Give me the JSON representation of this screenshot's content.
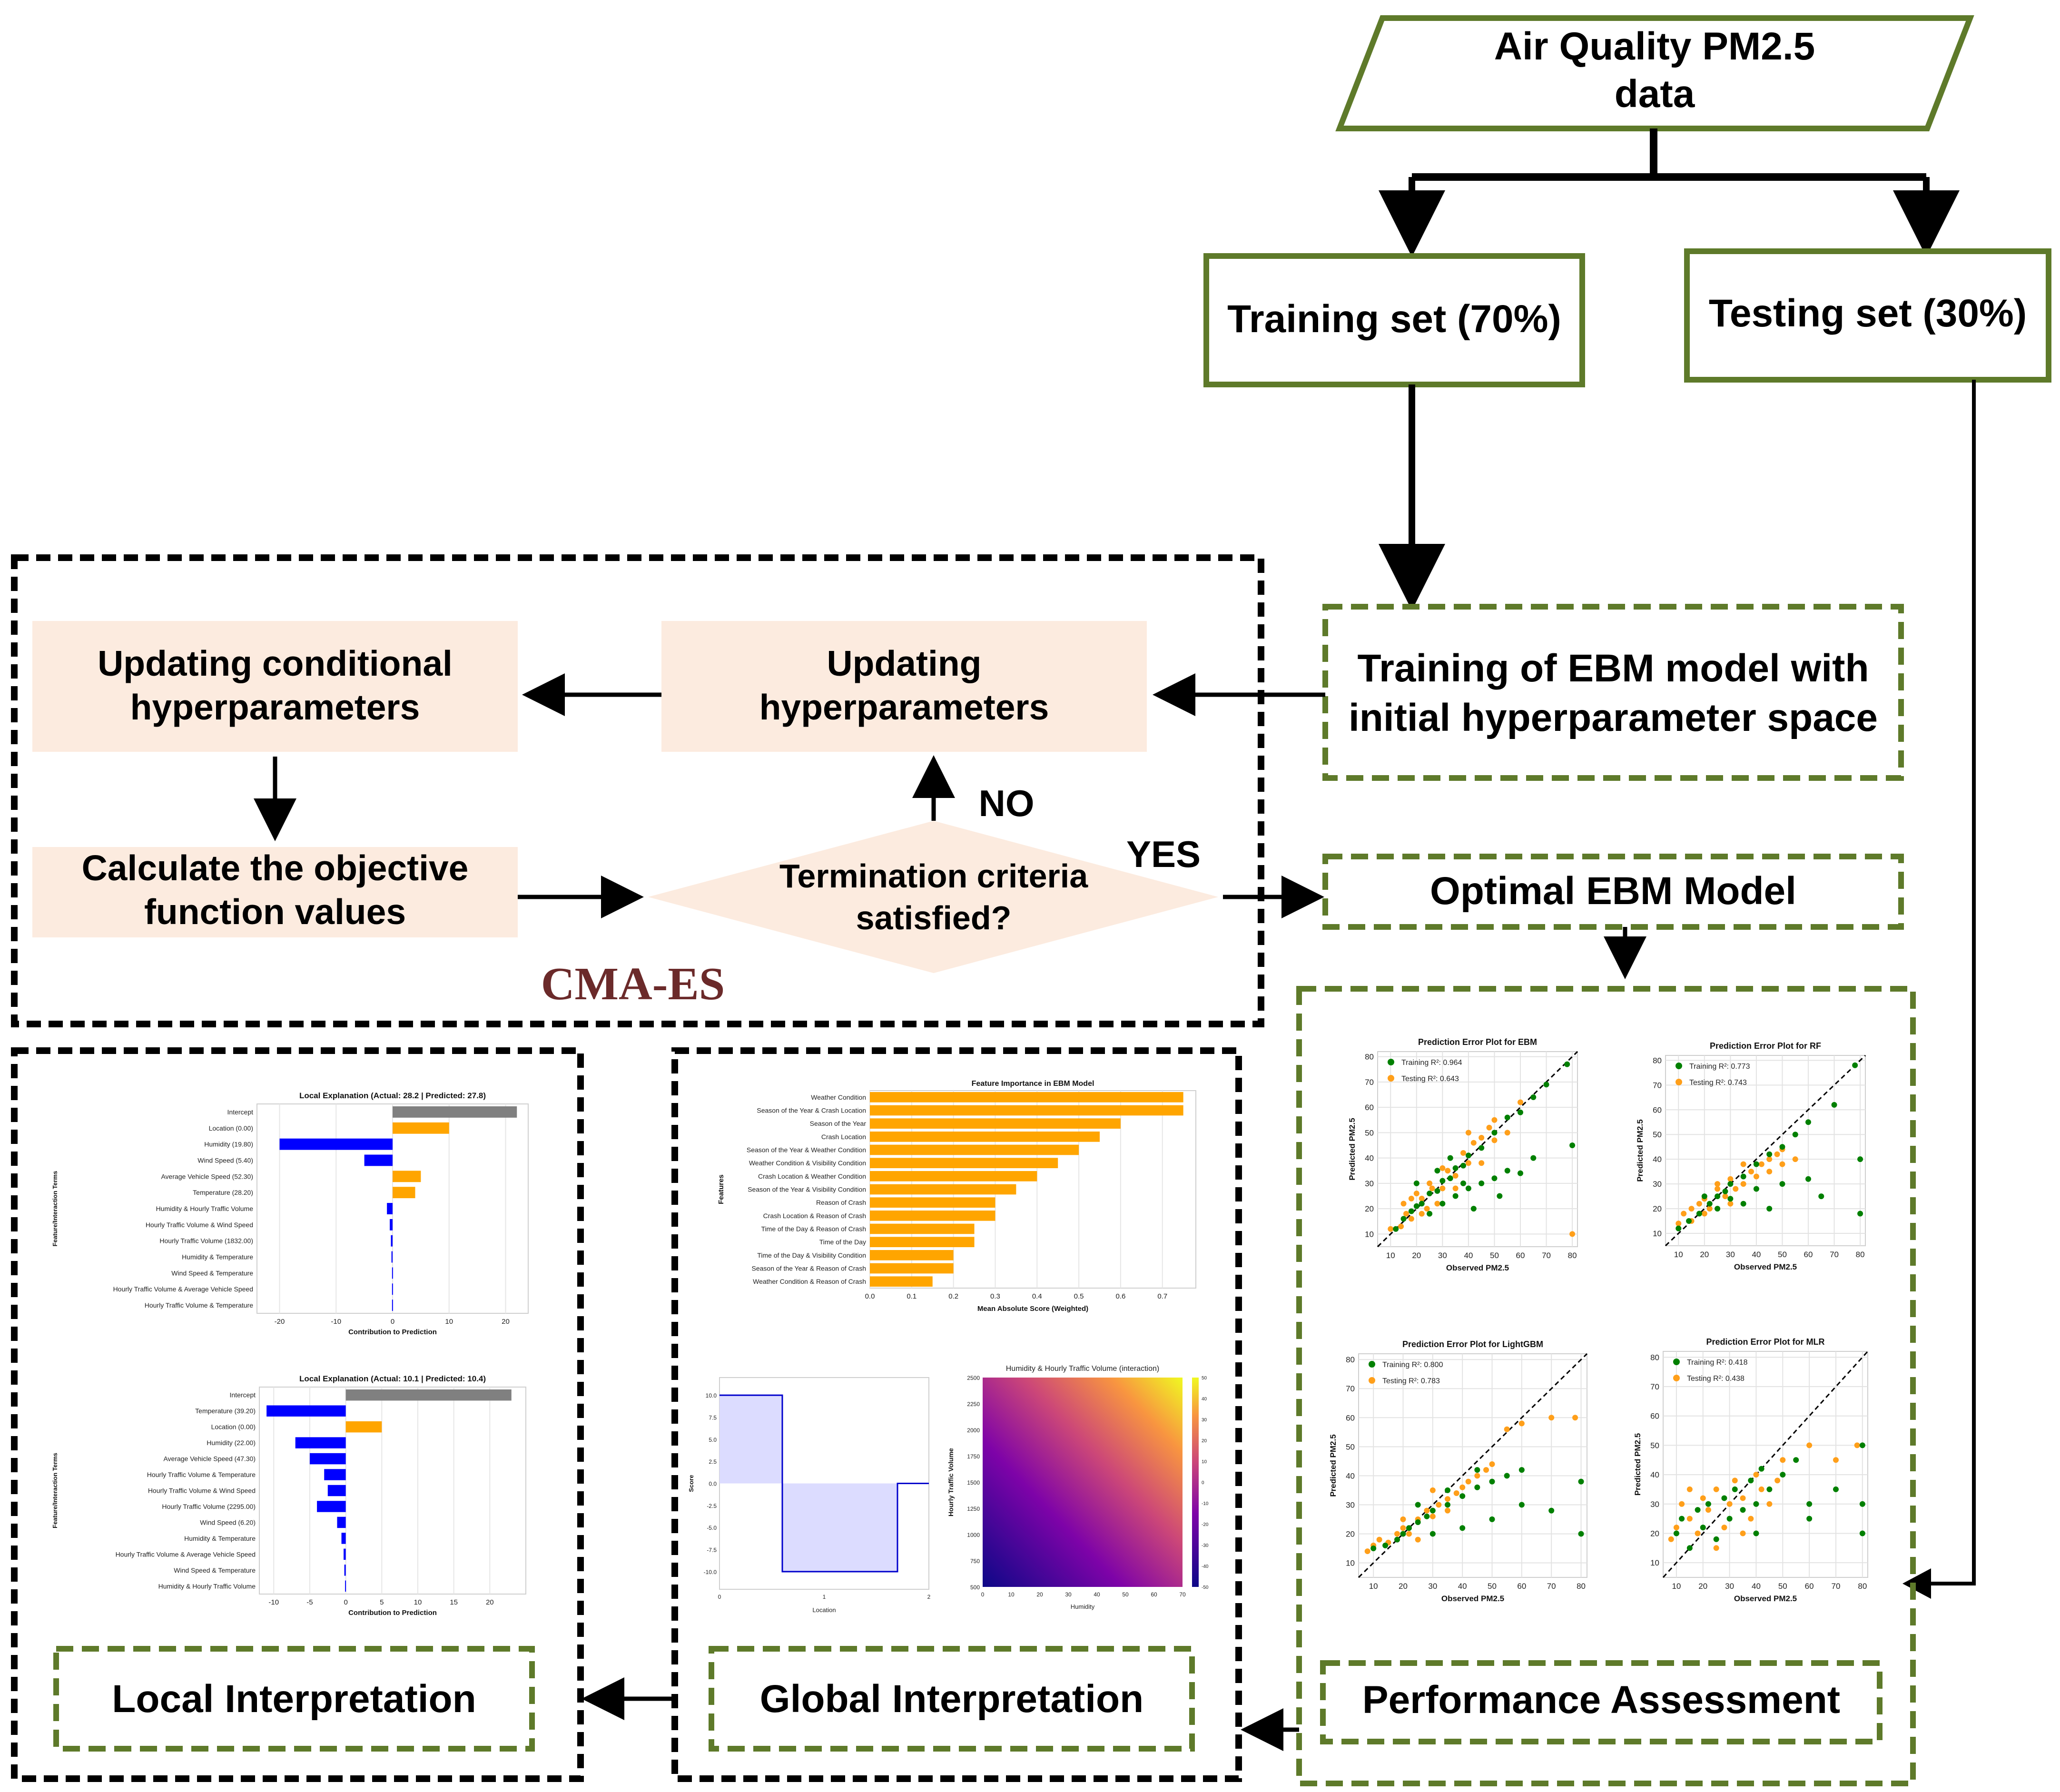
{
  "flow": {
    "input_data_l1": "Air Quality PM2.5",
    "input_data_l2": "data",
    "training_set": "Training set (70%)",
    "testing_set": "Testing set (30%)",
    "training_ebm_l1": "Training of EBM model with",
    "training_ebm_l2": "initial hyperparameter space",
    "updating_cond_l1": "Updating conditional",
    "updating_cond_l2": "hyperparameters",
    "updating_hyp_l1": "Updating",
    "updating_hyp_l2": "hyperparameters",
    "calc_obj_l1": "Calculate the objective",
    "calc_obj_l2": "function values",
    "termination_l1": "Termination criteria",
    "termination_l2": "satisfied?",
    "no_label": "NO",
    "yes_label": "YES",
    "cmaes_label": "CMA-ES",
    "optimal_model": "Optimal EBM Model",
    "performance": "Performance Assessment",
    "global_interp": "Global Interpretation",
    "local_interp": "Local Interpretation"
  },
  "colors": {
    "green": "#5e7a2a",
    "peach": "#fcebdf",
    "maroon": "#6b2a2a",
    "orange": "#ffa500",
    "blue": "#0000ff",
    "gray": "#808080",
    "train": "#008000",
    "test": "#ff9f1a"
  },
  "chart_data": [
    {
      "type": "scatter",
      "title": "Prediction Error Plot for EBM",
      "xlabel": "Observed PM2.5",
      "ylabel": "Predicted PM2.5",
      "xlim": [
        5,
        82
      ],
      "ylim": [
        5,
        82
      ],
      "xticks": [
        10,
        20,
        30,
        40,
        50,
        60,
        70,
        80
      ],
      "yticks": [
        10,
        20,
        30,
        40,
        50,
        60,
        70,
        80
      ],
      "legend_train": "Training R²: 0.964",
      "legend_test": "Testing R²: 0.643",
      "train_r2": 0.964,
      "test_r2": 0.643,
      "train_points": [
        [
          12,
          12
        ],
        [
          15,
          16
        ],
        [
          18,
          19
        ],
        [
          20,
          21
        ],
        [
          22,
          22
        ],
        [
          25,
          26
        ],
        [
          28,
          27
        ],
        [
          30,
          31
        ],
        [
          33,
          32
        ],
        [
          35,
          36
        ],
        [
          38,
          37
        ],
        [
          40,
          41
        ],
        [
          45,
          44
        ],
        [
          50,
          50
        ],
        [
          55,
          56
        ],
        [
          60,
          58
        ],
        [
          65,
          64
        ],
        [
          70,
          69
        ],
        [
          78,
          77
        ],
        [
          25,
          18
        ],
        [
          30,
          22
        ],
        [
          35,
          25
        ],
        [
          40,
          28
        ],
        [
          45,
          30
        ],
        [
          50,
          32
        ],
        [
          55,
          35
        ],
        [
          60,
          34
        ],
        [
          80,
          45
        ],
        [
          42,
          20
        ],
        [
          38,
          30
        ],
        [
          52,
          25
        ],
        [
          65,
          40
        ],
        [
          28,
          35
        ],
        [
          33,
          40
        ],
        [
          20,
          30
        ]
      ],
      "test_points": [
        [
          10,
          12
        ],
        [
          14,
          13
        ],
        [
          16,
          18
        ],
        [
          18,
          16
        ],
        [
          22,
          24
        ],
        [
          24,
          20
        ],
        [
          26,
          28
        ],
        [
          30,
          28
        ],
        [
          32,
          35
        ],
        [
          35,
          33
        ],
        [
          38,
          42
        ],
        [
          40,
          38
        ],
        [
          42,
          46
        ],
        [
          45,
          48
        ],
        [
          48,
          52
        ],
        [
          50,
          47
        ],
        [
          55,
          50
        ],
        [
          60,
          62
        ],
        [
          25,
          30
        ],
        [
          30,
          36
        ],
        [
          20,
          26
        ],
        [
          35,
          28
        ],
        [
          28,
          22
        ],
        [
          45,
          38
        ],
        [
          80,
          10
        ],
        [
          15,
          22
        ],
        [
          40,
          50
        ],
        [
          50,
          55
        ],
        [
          22,
          18
        ],
        [
          18,
          24
        ]
      ]
    },
    {
      "type": "scatter",
      "title": "Prediction Error Plot for RF",
      "xlabel": "Observed PM2.5",
      "ylabel": "Predicted PM2.5",
      "xlim": [
        5,
        82
      ],
      "ylim": [
        5,
        82
      ],
      "xticks": [
        10,
        20,
        30,
        40,
        50,
        60,
        70,
        80
      ],
      "yticks": [
        10,
        20,
        30,
        40,
        50,
        60,
        70,
        80
      ],
      "legend_train": "Training R²: 0.773",
      "legend_test": "Testing R²: 0.743",
      "train_r2": 0.773,
      "test_r2": 0.743,
      "train_points": [
        [
          10,
          12
        ],
        [
          14,
          15
        ],
        [
          18,
          18
        ],
        [
          22,
          22
        ],
        [
          25,
          25
        ],
        [
          28,
          27
        ],
        [
          30,
          30
        ],
        [
          35,
          33
        ],
        [
          40,
          38
        ],
        [
          45,
          42
        ],
        [
          50,
          45
        ],
        [
          55,
          50
        ],
        [
          60,
          55
        ],
        [
          70,
          62
        ],
        [
          78,
          78
        ],
        [
          25,
          20
        ],
        [
          30,
          24
        ],
        [
          40,
          28
        ],
        [
          50,
          30
        ],
        [
          60,
          32
        ],
        [
          80,
          40
        ],
        [
          80,
          18
        ],
        [
          45,
          20
        ],
        [
          35,
          22
        ],
        [
          20,
          25
        ],
        [
          65,
          25
        ]
      ],
      "test_points": [
        [
          10,
          14
        ],
        [
          12,
          18
        ],
        [
          15,
          20
        ],
        [
          18,
          22
        ],
        [
          20,
          24
        ],
        [
          22,
          20
        ],
        [
          25,
          28
        ],
        [
          28,
          25
        ],
        [
          30,
          32
        ],
        [
          32,
          28
        ],
        [
          35,
          30
        ],
        [
          38,
          35
        ],
        [
          40,
          33
        ],
        [
          42,
          38
        ],
        [
          45,
          40
        ],
        [
          48,
          42
        ],
        [
          50,
          44
        ],
        [
          30,
          22
        ],
        [
          25,
          30
        ],
        [
          20,
          18
        ],
        [
          15,
          15
        ],
        [
          45,
          35
        ],
        [
          55,
          40
        ],
        [
          35,
          38
        ],
        [
          50,
          38
        ]
      ]
    },
    {
      "type": "scatter",
      "title": "Prediction Error Plot for LightGBM",
      "xlabel": "Observed PM2.5",
      "ylabel": "Predicted PM2.5",
      "xlim": [
        5,
        82
      ],
      "ylim": [
        5,
        82
      ],
      "xticks": [
        10,
        20,
        30,
        40,
        50,
        60,
        70,
        80
      ],
      "yticks": [
        10,
        20,
        30,
        40,
        50,
        60,
        70,
        80
      ],
      "legend_train": "Training R²: 0.800",
      "legend_test": "Testing R²: 0.783",
      "train_r2": 0.8,
      "test_r2": 0.783,
      "train_points": [
        [
          10,
          15
        ],
        [
          14,
          16
        ],
        [
          18,
          18
        ],
        [
          20,
          20
        ],
        [
          22,
          22
        ],
        [
          25,
          24
        ],
        [
          28,
          26
        ],
        [
          30,
          28
        ],
        [
          35,
          30
        ],
        [
          40,
          33
        ],
        [
          45,
          36
        ],
        [
          50,
          38
        ],
        [
          55,
          40
        ],
        [
          60,
          42
        ],
        [
          80,
          38
        ],
        [
          80,
          20
        ],
        [
          70,
          28
        ],
        [
          60,
          30
        ],
        [
          40,
          22
        ],
        [
          50,
          25
        ],
        [
          30,
          20
        ],
        [
          25,
          30
        ],
        [
          35,
          35
        ],
        [
          45,
          42
        ]
      ],
      "test_points": [
        [
          8,
          14
        ],
        [
          10,
          16
        ],
        [
          12,
          18
        ],
        [
          15,
          17
        ],
        [
          18,
          20
        ],
        [
          20,
          22
        ],
        [
          22,
          20
        ],
        [
          25,
          25
        ],
        [
          28,
          28
        ],
        [
          30,
          26
        ],
        [
          32,
          30
        ],
        [
          35,
          32
        ],
        [
          38,
          34
        ],
        [
          40,
          36
        ],
        [
          42,
          38
        ],
        [
          45,
          40
        ],
        [
          48,
          42
        ],
        [
          50,
          44
        ],
        [
          55,
          56
        ],
        [
          60,
          58
        ],
        [
          70,
          60
        ],
        [
          78,
          60
        ],
        [
          30,
          35
        ],
        [
          25,
          18
        ],
        [
          20,
          25
        ],
        [
          35,
          28
        ]
      ]
    },
    {
      "type": "scatter",
      "title": "Prediction Error Plot for MLR",
      "xlabel": "Observed PM2.5",
      "ylabel": "Predicted PM2.5",
      "xlim": [
        5,
        82
      ],
      "ylim": [
        5,
        82
      ],
      "xticks": [
        10,
        20,
        30,
        40,
        50,
        60,
        70,
        80
      ],
      "yticks": [
        10,
        20,
        30,
        40,
        50,
        60,
        70,
        80
      ],
      "legend_train": "Training R²: 0.418",
      "legend_test": "Testing R²: 0.438",
      "train_r2": 0.418,
      "test_r2": 0.438,
      "train_points": [
        [
          10,
          20
        ],
        [
          12,
          25
        ],
        [
          15,
          15
        ],
        [
          18,
          28
        ],
        [
          20,
          22
        ],
        [
          22,
          30
        ],
        [
          25,
          18
        ],
        [
          28,
          32
        ],
        [
          30,
          25
        ],
        [
          32,
          35
        ],
        [
          35,
          28
        ],
        [
          38,
          38
        ],
        [
          40,
          30
        ],
        [
          42,
          42
        ],
        [
          45,
          35
        ],
        [
          50,
          40
        ],
        [
          55,
          45
        ],
        [
          60,
          30
        ],
        [
          70,
          35
        ],
        [
          80,
          50
        ],
        [
          80,
          30
        ],
        [
          80,
          20
        ],
        [
          60,
          25
        ],
        [
          40,
          20
        ]
      ],
      "test_points": [
        [
          8,
          18
        ],
        [
          10,
          22
        ],
        [
          12,
          30
        ],
        [
          15,
          25
        ],
        [
          18,
          20
        ],
        [
          20,
          32
        ],
        [
          22,
          28
        ],
        [
          25,
          35
        ],
        [
          28,
          22
        ],
        [
          30,
          30
        ],
        [
          32,
          38
        ],
        [
          35,
          32
        ],
        [
          38,
          25
        ],
        [
          40,
          40
        ],
        [
          42,
          35
        ],
        [
          45,
          30
        ],
        [
          48,
          38
        ],
        [
          50,
          45
        ],
        [
          60,
          50
        ],
        [
          70,
          45
        ],
        [
          78,
          50
        ],
        [
          25,
          15
        ],
        [
          15,
          35
        ],
        [
          35,
          20
        ]
      ]
    },
    {
      "type": "bar",
      "title": "Feature Importance in EBM Model",
      "xlabel": "Mean Absolute Score (Weighted)",
      "ylabel": "Features",
      "xlim": [
        0,
        0.78
      ],
      "xticks": [
        0.0,
        0.1,
        0.2,
        0.3,
        0.4,
        0.5,
        0.6,
        0.7
      ],
      "categories": [
        "Weather Condition",
        "Season of the Year & Crash Location",
        "Season of the Year",
        "Crash Location",
        "Season of the Year & Weather Condition",
        "Weather Condition & Visibility Condition",
        "Crash Location & Weather Condition",
        "Season of the Year & Visibility Condition",
        "Reason of Crash",
        "Crash Location & Reason of Crash",
        "Time of the Day & Reason of Crash",
        "Time of the Day",
        "Time of the Day & Visibility Condition",
        "Season of the Year & Reason of Crash",
        "Weather Condition & Reason of Crash"
      ],
      "values": [
        0.75,
        0.75,
        0.6,
        0.55,
        0.5,
        0.45,
        0.4,
        0.35,
        0.3,
        0.3,
        0.25,
        0.25,
        0.2,
        0.2,
        0.15
      ]
    },
    {
      "type": "line",
      "title": "",
      "xlabel": "Location",
      "ylabel": "Score",
      "xlim": [
        0,
        2
      ],
      "ylim": [
        -12,
        12
      ],
      "x_ticks": [
        "0",
        "1",
        "2"
      ],
      "y_ticks": [
        "10.0",
        "7.5",
        "5.0",
        "2.5",
        "0.0",
        "-2.5",
        "-5.0",
        "-7.5",
        "-10.0"
      ],
      "segments": [
        {
          "x": [
            0,
            0.6
          ],
          "y": 10
        },
        {
          "x": [
            0.6,
            1.7
          ],
          "y": -10
        },
        {
          "x": [
            1.7,
            2
          ],
          "y": 0
        }
      ]
    },
    {
      "type": "heatmap",
      "title": "Humidity & Hourly Traffic Volume (interaction)",
      "xlabel": "Humidity",
      "ylabel": "Hourly Traffic Volume",
      "x_ticks": [
        "0",
        "10",
        "20",
        "30",
        "40",
        "50",
        "60",
        "70"
      ],
      "y_ticks": [
        "2500",
        "2250",
        "2000",
        "1750",
        "1500",
        "1250",
        "1000",
        "750",
        "500"
      ],
      "colorbar_ticks": [
        "50",
        "40",
        "30",
        "20",
        "10",
        "0",
        "-10",
        "-20",
        "-30",
        "-40",
        "-50"
      ]
    },
    {
      "type": "bar",
      "title": "Local Explanation (Actual: 28.2 | Predicted: 27.8)",
      "xlabel": "Contribution to Prediction",
      "ylabel": "Feature/Interaction Terms",
      "xlim": [
        -24,
        24
      ],
      "xticks": [
        -20,
        -10,
        0,
        10,
        20
      ],
      "categories": [
        "Intercept",
        "Location (0.00)",
        "Humidity (19.80)",
        "Wind Speed (5.40)",
        "Average Vehicle Speed (52.30)",
        "Temperature (28.20)",
        "Humidity & Hourly Traffic Volume",
        "Hourly Traffic Volume & Wind Speed",
        "Hourly Traffic Volume (1832.00)",
        "Humidity & Temperature",
        "Wind Speed & Temperature",
        "Hourly Traffic Volume & Average Vehicle Speed",
        "Hourly Traffic Volume & Temperature"
      ],
      "values": [
        22,
        10,
        -20,
        -5,
        5,
        4,
        -1,
        -0.5,
        -0.3,
        -0.2,
        -0.1,
        -0.1,
        -0.1
      ]
    },
    {
      "type": "bar",
      "title": "Local Explanation (Actual: 10.1 | Predicted: 10.4)",
      "xlabel": "Contribution to Prediction",
      "ylabel": "Feature/Interaction Terms",
      "xlim": [
        -12,
        25
      ],
      "xticks": [
        -10,
        -5,
        0,
        5,
        10,
        15,
        20
      ],
      "categories": [
        "Intercept",
        "Temperature (39.20)",
        "Location (0.00)",
        "Humidity (22.00)",
        "Average Vehicle Speed (47.30)",
        "Hourly Traffic Volume & Temperature",
        "Hourly Traffic Volume & Wind Speed",
        "Hourly Traffic Volume (2295.00)",
        "Wind Speed (6.20)",
        "Humidity & Temperature",
        "Hourly Traffic Volume & Average Vehicle Speed",
        "Wind Speed & Temperature",
        "Humidity & Hourly Traffic Volume"
      ],
      "values": [
        23,
        -11,
        5,
        -7,
        -5,
        -3,
        -2.5,
        -4,
        -1.2,
        -0.6,
        -0.3,
        -0.2,
        -0.1
      ]
    }
  ]
}
